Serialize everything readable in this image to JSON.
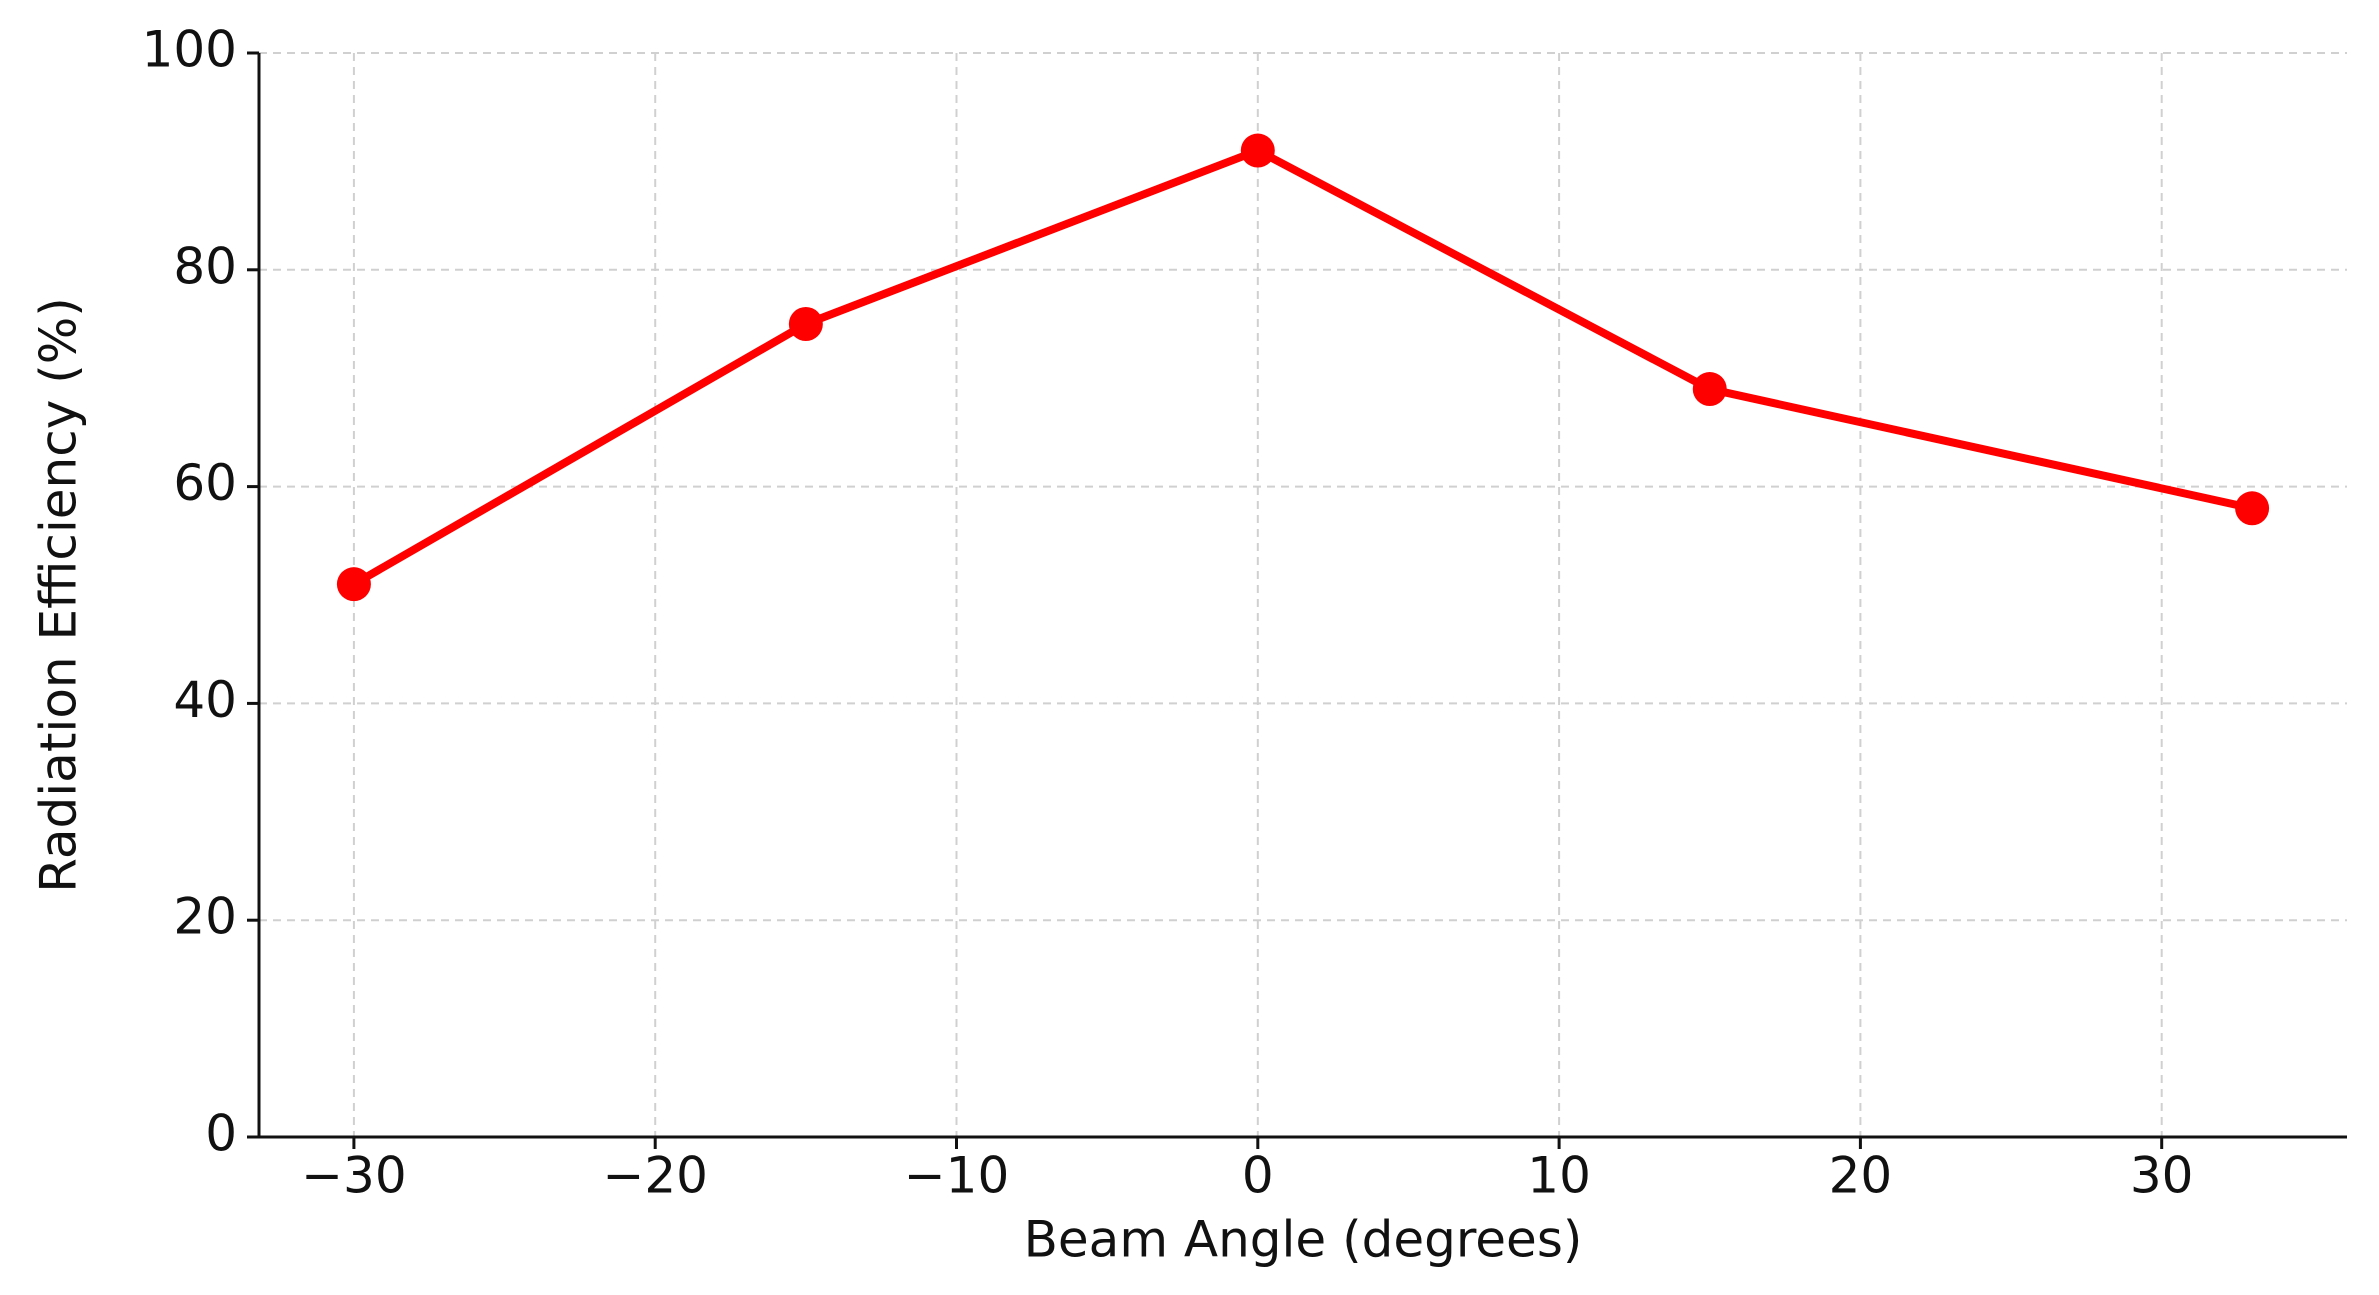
{
  "chart_data": {
    "type": "line",
    "x": [
      -30,
      -15,
      0,
      15,
      33
    ],
    "series": [
      {
        "name": "Radiation Efficiency",
        "color": "#ff0000",
        "values": [
          51,
          75,
          91,
          69,
          58
        ]
      }
    ],
    "xlabel": "Beam Angle (degrees)",
    "ylabel": "Radiation Efficiency (%)",
    "xlim": [
      -33.15,
      36.15
    ],
    "ylim": [
      0,
      100
    ],
    "xticks": [
      {
        "value": -30,
        "label": "−30"
      },
      {
        "value": -20,
        "label": "−20"
      },
      {
        "value": -10,
        "label": "−10"
      },
      0,
      10,
      20,
      30
    ],
    "yticks": [
      0,
      20,
      40,
      60,
      80,
      100
    ],
    "grid": true
  }
}
